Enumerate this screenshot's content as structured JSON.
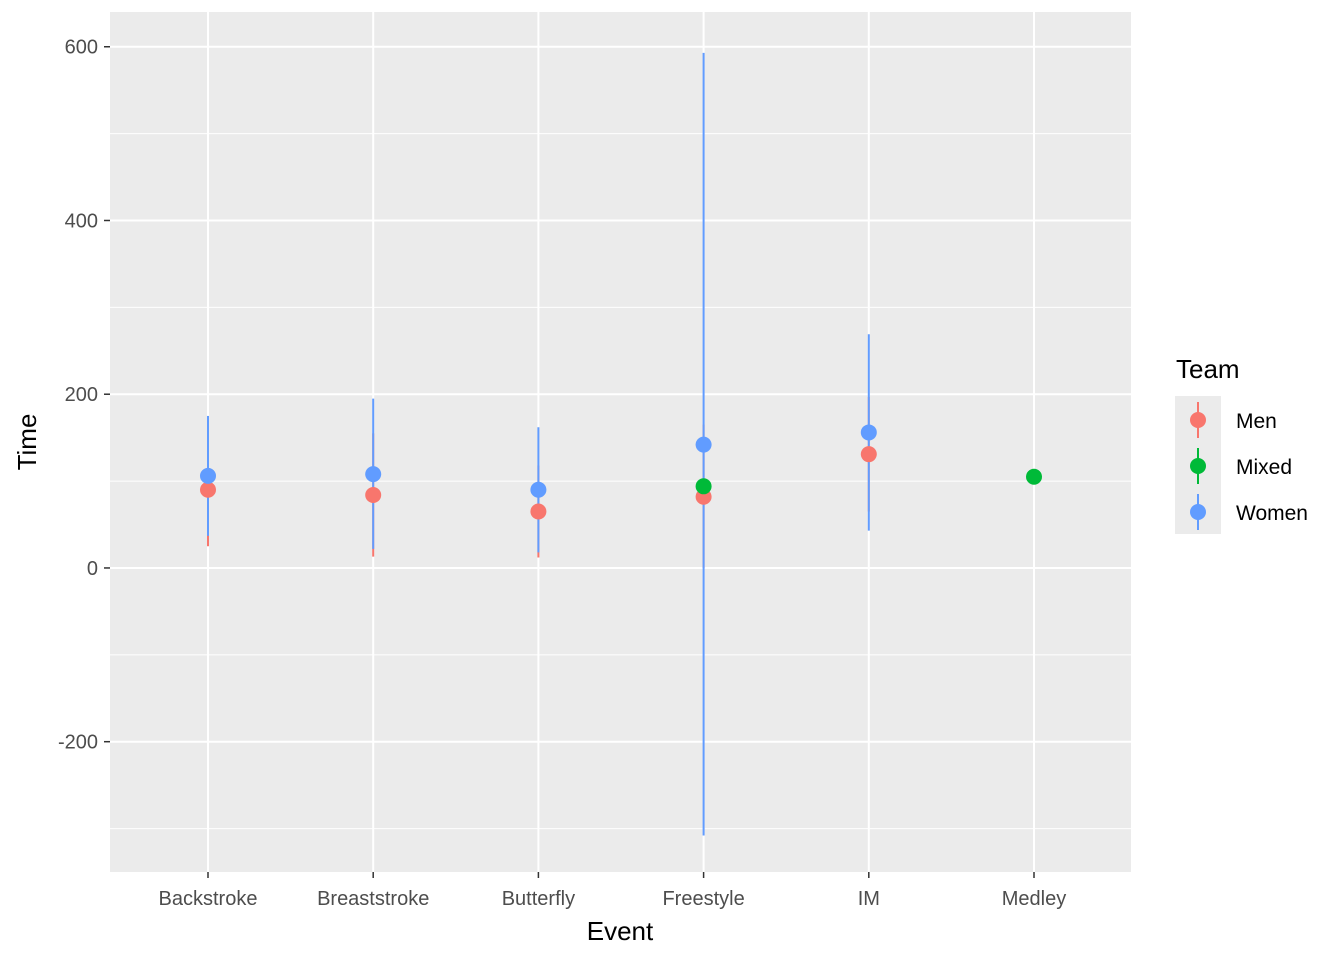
{
  "chart_data": {
    "type": "scatter",
    "xlabel": "Event",
    "ylabel": "Time",
    "categories": [
      "Backstroke",
      "Breaststroke",
      "Butterfly",
      "Freestyle",
      "IM",
      "Medley"
    ],
    "ylim": [
      -350,
      640
    ],
    "yticks": [
      -200,
      0,
      200,
      400,
      600
    ],
    "grid": true,
    "legend": {
      "title": "Team",
      "placement": "right",
      "entries": [
        "Men",
        "Mixed",
        "Women"
      ]
    },
    "colors": {
      "Men": "#F8766D",
      "Mixed": "#00BA38",
      "Women": "#619CFF",
      "panel": "#EBEBEB",
      "grid": "#FFFFFF"
    },
    "series": [
      {
        "name": "Men",
        "points": [
          {
            "category": "Backstroke",
            "y": 90,
            "ymin": 25,
            "ymax": 155
          },
          {
            "category": "Breaststroke",
            "y": 84,
            "ymin": 13,
            "ymax": 155
          },
          {
            "category": "Butterfly",
            "y": 65,
            "ymin": 12,
            "ymax": 118
          },
          {
            "category": "Freestyle",
            "y": 82,
            "ymin": 0,
            "ymax": 165
          },
          {
            "category": "IM",
            "y": 131,
            "ymin": 65,
            "ymax": 197
          }
        ]
      },
      {
        "name": "Mixed",
        "points": [
          {
            "category": "Freestyle",
            "y": 94,
            "ymin": 94,
            "ymax": 94
          },
          {
            "category": "Medley",
            "y": 105,
            "ymin": 105,
            "ymax": 105
          }
        ]
      },
      {
        "name": "Women",
        "points": [
          {
            "category": "Backstroke",
            "y": 106,
            "ymin": 37,
            "ymax": 175
          },
          {
            "category": "Breaststroke",
            "y": 108,
            "ymin": 22,
            "ymax": 195
          },
          {
            "category": "Butterfly",
            "y": 90,
            "ymin": 18,
            "ymax": 162
          },
          {
            "category": "Freestyle",
            "y": 142,
            "ymin": -308,
            "ymax": 593
          },
          {
            "category": "IM",
            "y": 156,
            "ymin": 43,
            "ymax": 269
          }
        ]
      }
    ]
  }
}
